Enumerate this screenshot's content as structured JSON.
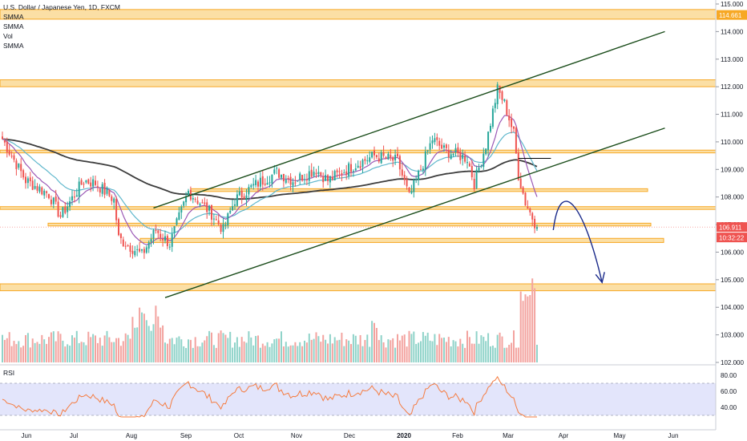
{
  "legend": {
    "symbol": "U.S. Dollar / Japanese Yen, 1D, FXCM",
    "studies": [
      "SMMA",
      "SMMA",
      "Vol",
      "SMMA"
    ]
  },
  "price_badges": {
    "ask_level": "114.661",
    "last_price": "106.911",
    "countdown": "10:32:22"
  },
  "rsi_label": "RSI",
  "colors": {
    "up": "#26a69a",
    "down": "#ef5350",
    "zone_fill": "#fbdfa5",
    "zone_border": "#f7a825",
    "trend": "#1b4d1b",
    "smma_long": "#3c3c3c",
    "smma_mid": "#5fb7cc",
    "smma_fast": "#9b59b6",
    "rsi_line": "#f57c40",
    "rsi_band": "#e3e5fb",
    "arrow": "#1a2a8a",
    "badge_dark": "#ef5350"
  },
  "chart_data": {
    "type": "candlestick",
    "x_ticks": [
      "Jun",
      "Jul",
      "Aug",
      "Sep",
      "Oct",
      "Nov",
      "Dec",
      "2020",
      "Feb",
      "Mar",
      "Apr",
      "May",
      "Jun"
    ],
    "y_ticks": [
      "115.000",
      "114.000",
      "113.000",
      "112.000",
      "111.000",
      "110.000",
      "109.000",
      "108.000",
      "107.000",
      "106.000",
      "105.000",
      "104.000",
      "103.000",
      "102.000"
    ],
    "ylim": [
      102,
      115
    ],
    "rsi_ticks": [
      "80.00",
      "60.00",
      "40.00"
    ],
    "rsi_band": [
      30,
      70
    ],
    "close_anchors": [
      [
        0,
        110.1
      ],
      [
        10,
        108.6
      ],
      [
        20,
        108.1
      ],
      [
        25,
        107.3
      ],
      [
        35,
        108.6
      ],
      [
        40,
        108.5
      ],
      [
        48,
        107.9
      ],
      [
        50,
        106.5
      ],
      [
        55,
        106.2
      ],
      [
        60,
        105.9
      ],
      [
        66,
        106.8
      ],
      [
        72,
        106.3
      ],
      [
        80,
        108.2
      ],
      [
        90,
        107.4
      ],
      [
        95,
        106.8
      ],
      [
        100,
        107.9
      ],
      [
        108,
        108.4
      ],
      [
        118,
        108.9
      ],
      [
        125,
        108.6
      ],
      [
        135,
        109.0
      ],
      [
        140,
        108.6
      ],
      [
        150,
        109.1
      ],
      [
        160,
        109.5
      ],
      [
        170,
        109.3
      ],
      [
        175,
        108.0
      ],
      [
        180,
        109.0
      ],
      [
        185,
        110.1
      ],
      [
        190,
        109.7
      ],
      [
        200,
        109.4
      ],
      [
        203,
        108.5
      ],
      [
        208,
        109.9
      ],
      [
        213,
        111.9
      ],
      [
        216,
        111.4
      ],
      [
        220,
        110.3
      ],
      [
        222,
        108.8
      ],
      [
        225,
        107.8
      ],
      [
        230,
        106.9
      ]
    ],
    "ask_level": 114.661,
    "last_price": 106.911,
    "zones": [
      [
        114.45,
        114.8
      ],
      [
        112.0,
        112.25
      ],
      [
        109.6,
        109.7
      ],
      [
        108.2,
        108.3
      ],
      [
        107.55,
        107.65
      ],
      [
        106.95,
        107.05
      ],
      [
        106.35,
        106.5
      ],
      [
        104.6,
        104.85
      ]
    ],
    "trend_upper": [
      [
        65,
        107.6
      ],
      [
        285,
        114.0
      ]
    ],
    "trend_lower": [
      [
        70,
        104.35
      ],
      [
        285,
        110.5
      ]
    ],
    "forecast_arrow": [
      [
        237,
        106.8
      ],
      [
        240,
        108.8
      ],
      [
        250,
        107.8
      ],
      [
        258,
        104.9
      ]
    ]
  }
}
